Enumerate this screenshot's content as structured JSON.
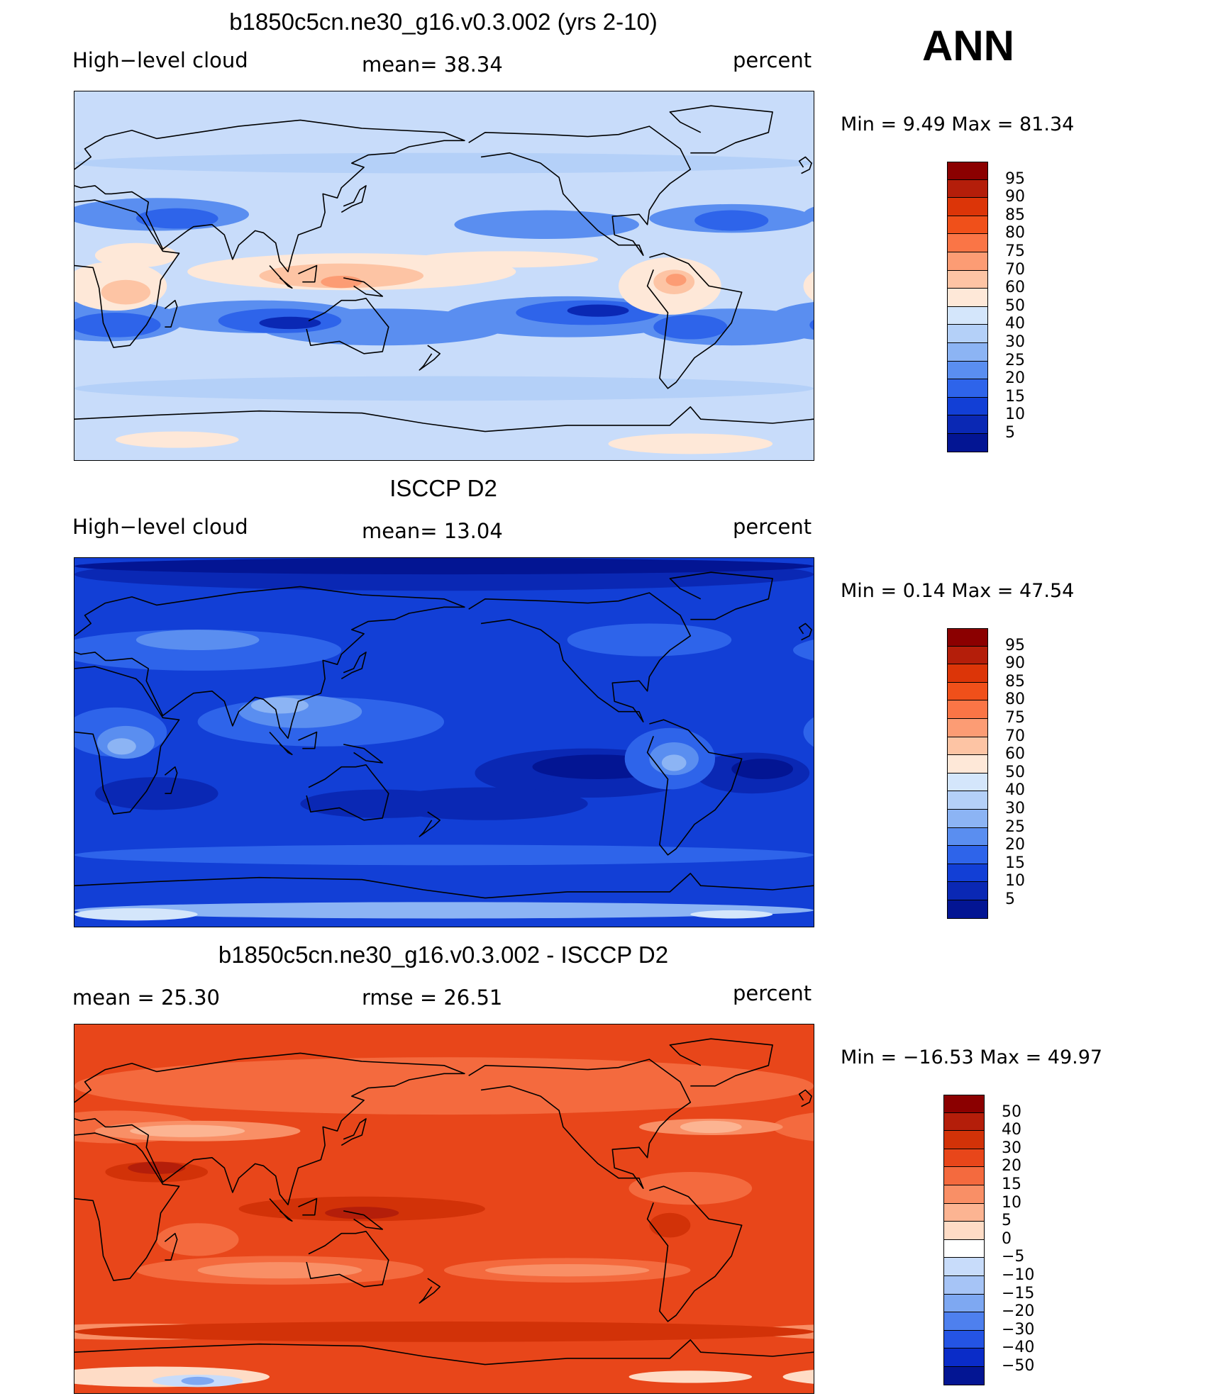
{
  "season": "ANN",
  "panels": [
    {
      "id": "model",
      "title": "b1850c5cn.ne30_g16.v0.3.002 (yrs 2-10)",
      "left_label": "High−level cloud",
      "center_label": "mean=   38.34",
      "units": "percent",
      "minmax": "Min =    9.49  Max =   81.34",
      "scheme": "model",
      "levels": [
        "95",
        "90",
        "85",
        "80",
        "75",
        "70",
        "60",
        "50",
        "40",
        "30",
        "25",
        "20",
        "15",
        "10",
        "5"
      ],
      "colors": [
        "#8b0000",
        "#b41e0a",
        "#dc3508",
        "#f0501a",
        "#fa7546",
        "#fc9c74",
        "#fdc4a4",
        "#fee8d8",
        "#d4e6fb",
        "#b4d0f8",
        "#8cb4f4",
        "#5a8ef0",
        "#2e64ea",
        "#123fd6",
        "#0a28b4",
        "#031593"
      ]
    },
    {
      "id": "obs",
      "title": "ISCCP D2",
      "left_label": "High−level cloud",
      "center_label": "mean=   13.04",
      "units": "percent",
      "minmax": "Min =    0.14  Max =   47.54",
      "scheme": "obs",
      "levels": [
        "95",
        "90",
        "85",
        "80",
        "75",
        "70",
        "60",
        "50",
        "40",
        "30",
        "25",
        "20",
        "15",
        "10",
        "5"
      ],
      "colors": [
        "#8b0000",
        "#b41e0a",
        "#dc3508",
        "#f0501a",
        "#fa7546",
        "#fc9c74",
        "#fdc4a4",
        "#fee8d8",
        "#d4e6fb",
        "#b4d0f8",
        "#8cb4f4",
        "#5a8ef0",
        "#2e64ea",
        "#123fd6",
        "#0a28b4",
        "#031593"
      ]
    },
    {
      "id": "diff",
      "title": "b1850c5cn.ne30_g16.v0.3.002 - ISCCP D2",
      "left_label": "mean =    25.30",
      "center_label": "rmse =    26.51",
      "units": "percent",
      "minmax": "Min = −16.53  Max =   49.97",
      "scheme": "diff",
      "levels": [
        "50",
        "40",
        "30",
        "20",
        "15",
        "10",
        "5",
        "0",
        "−5",
        "−10",
        "−15",
        "−20",
        "−30",
        "−40",
        "−50"
      ],
      "colors": [
        "#8b0000",
        "#b41e0a",
        "#d23208",
        "#e8461a",
        "#f46a3e",
        "#f98f66",
        "#fcb492",
        "#fedcc6",
        "#ffffff",
        "#c8dcfa",
        "#a6c4f6",
        "#7ea8f2",
        "#4e80ee",
        "#2454e4",
        "#0a2cc8",
        "#031593"
      ]
    }
  ]
}
